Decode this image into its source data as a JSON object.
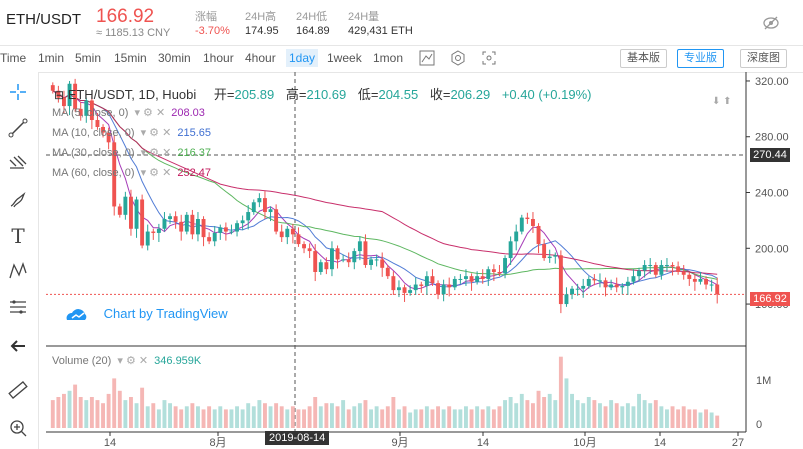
{
  "header": {
    "symbol": "ETH/USDT",
    "price": "166.92",
    "cny": "≈ 1185.13 CNY",
    "stats": [
      {
        "label": "涨幅",
        "value": "-3.70%"
      },
      {
        "label": "24H高",
        "value": "174.95"
      },
      {
        "label": "24H低",
        "value": "164.89"
      },
      {
        "label": "24H量",
        "value": "429,431 ETH"
      }
    ]
  },
  "toolbar": {
    "timeframes": [
      "Time",
      "1min",
      "5min",
      "15min",
      "30min",
      "1hour",
      "4hour",
      "1day",
      "1week",
      "1mon"
    ],
    "active_timeframe": "1day",
    "view_buttons": [
      "基本版",
      "专业版",
      "深度图"
    ],
    "active_view": "专业版"
  },
  "legend": {
    "title": "ETH/USDT, 1D, Huobi",
    "open_label": "开=",
    "open": "205.89",
    "high_label": "高=",
    "high": "210.69",
    "low_label": "低=",
    "low": "204.55",
    "close_label": "收=",
    "close": "206.29",
    "change": "+0.40 (+0.19%)",
    "ma": [
      {
        "label": "MA (5, close, 0)",
        "value": "208.03",
        "color": "#9c27b0"
      },
      {
        "label": "MA (10, close, 0)",
        "value": "215.65",
        "color": "#3f6fd1"
      },
      {
        "label": "MA (30, close, 0)",
        "value": "216.37",
        "color": "#4caf50"
      },
      {
        "label": "MA (60, close, 0)",
        "value": "252.47",
        "color": "#c2185b"
      }
    ],
    "volume_label": "Volume (20)",
    "volume_value": "346.959K"
  },
  "watermark": "Chart by TradingView",
  "price_axis": {
    "ticks": [
      "320.00",
      "280.00",
      "240.00",
      "200.00",
      "160.00"
    ],
    "crosshair_tag": "270.44",
    "last_tag": "166.92"
  },
  "volume_axis": {
    "ticks": [
      "1M",
      "0"
    ]
  },
  "time_axis": {
    "ticks": [
      "14",
      "8月",
      "9月",
      "14",
      "10月",
      "14",
      "27"
    ],
    "crosshair_date": "2019-08-14"
  },
  "colors": {
    "up": "#26a69a",
    "down": "#ef5350",
    "up_vol": "#b2dfdb",
    "down_vol": "#f5b7b5"
  },
  "chart_data": {
    "type": "candlestick",
    "ylim": [
      150,
      325
    ],
    "close": [
      313,
      308,
      302,
      318,
      300,
      295,
      306,
      292,
      287,
      283,
      276,
      230,
      224,
      237,
      214,
      235,
      202,
      212,
      211,
      214,
      221,
      223,
      219,
      212,
      224,
      210,
      221,
      208,
      205,
      211,
      215,
      212,
      212,
      218,
      220,
      226,
      233,
      236,
      226,
      228,
      212,
      208,
      214,
      210,
      203,
      200,
      198,
      183,
      190,
      185,
      200,
      192,
      192,
      190,
      198,
      205,
      188,
      192,
      192,
      186,
      180,
      170,
      172,
      168,
      170,
      174,
      173,
      180,
      175,
      167,
      174,
      172,
      178,
      178,
      180,
      176,
      180,
      178,
      185,
      183,
      182,
      193,
      205,
      212,
      222,
      221,
      216,
      203,
      193,
      194,
      195,
      160,
      167,
      171,
      171,
      173,
      178,
      177,
      177,
      172,
      174,
      172,
      173,
      176,
      180,
      184,
      188,
      188,
      181,
      188,
      188,
      187,
      183,
      181,
      178,
      176,
      178,
      174,
      174,
      166.92
    ],
    "volume": [
      0.45,
      0.5,
      0.55,
      0.6,
      0.7,
      0.5,
      0.45,
      0.5,
      0.45,
      0.4,
      0.55,
      0.8,
      0.6,
      0.45,
      0.5,
      0.4,
      0.65,
      0.35,
      0.4,
      0.3,
      0.45,
      0.4,
      0.35,
      0.3,
      0.35,
      0.4,
      0.35,
      0.3,
      0.35,
      0.3,
      0.35,
      0.3,
      0.3,
      0.35,
      0.3,
      0.4,
      0.35,
      0.45,
      0.4,
      0.35,
      0.4,
      0.35,
      0.3,
      0.35,
      0.3,
      0.3,
      0.35,
      0.5,
      0.35,
      0.4,
      0.4,
      0.35,
      0.45,
      0.3,
      0.35,
      0.4,
      0.45,
      0.3,
      0.35,
      0.3,
      0.35,
      0.5,
      0.3,
      0.35,
      0.25,
      0.3,
      0.3,
      0.35,
      0.3,
      0.35,
      0.3,
      0.35,
      0.3,
      0.3,
      0.35,
      0.3,
      0.35,
      0.3,
      0.35,
      0.3,
      0.35,
      0.45,
      0.5,
      0.4,
      0.55,
      0.45,
      0.4,
      0.6,
      0.5,
      0.55,
      0.45,
      1.15,
      0.8,
      0.55,
      0.45,
      0.4,
      0.5,
      0.45,
      0.4,
      0.35,
      0.45,
      0.4,
      0.35,
      0.4,
      0.35,
      0.55,
      0.45,
      0.4,
      0.45,
      0.35,
      0.3,
      0.35,
      0.3,
      0.35,
      0.3,
      0.3,
      0.25,
      0.3,
      0.25,
      0.2
    ]
  }
}
